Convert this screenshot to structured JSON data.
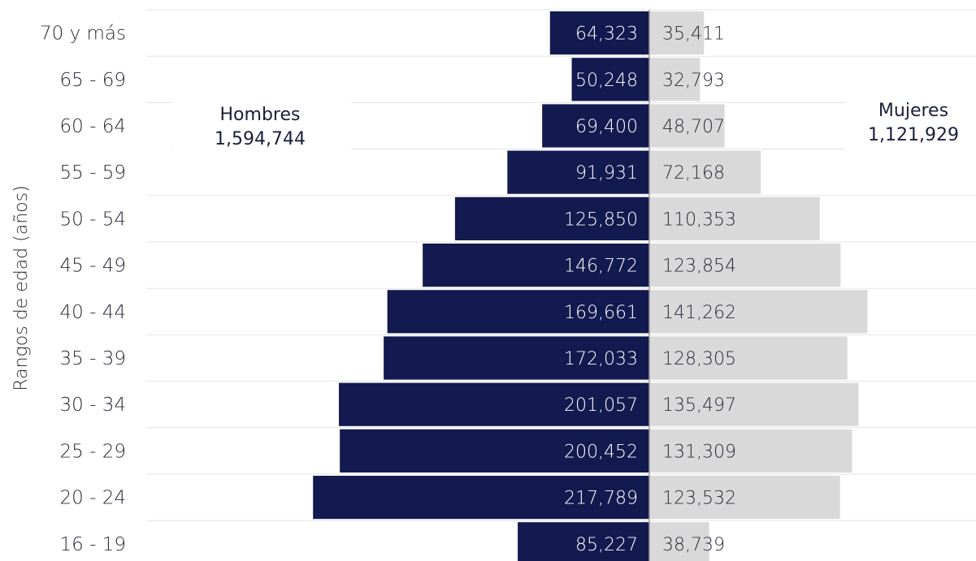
{
  "chart_data": {
    "type": "bar",
    "orientation": "horizontal-population-pyramid",
    "ylabel": "Rangos de edad (años)",
    "categories": [
      "70 y más",
      "65 - 69",
      "60 - 64",
      "55 - 59",
      "50 - 54",
      "45 - 49",
      "40 - 44",
      "35 - 39",
      "30 - 34",
      "25 - 29",
      "20 - 24",
      "16 - 19"
    ],
    "series": [
      {
        "name": "Hombres",
        "color": "#131a4f",
        "total_label": "1,594,744",
        "values": [
          64323,
          50248,
          69400,
          91931,
          125850,
          146772,
          169661,
          172033,
          201057,
          200452,
          217789,
          85227
        ],
        "labels": [
          "64,323",
          "50,248",
          "69,400",
          "91,931",
          "125,850",
          "146,772",
          "169,661",
          "172,033",
          "201,057",
          "200,452",
          "217,789",
          "85,227"
        ]
      },
      {
        "name": "Mujeres",
        "color": "#d9d9d9",
        "total_label": "1,121,929",
        "values": [
          35411,
          32793,
          48707,
          72168,
          110353,
          123854,
          141262,
          128305,
          135497,
          131309,
          123532,
          38739
        ],
        "labels": [
          "35,411",
          "32,793",
          "48,707",
          "72,168",
          "110,353",
          "123,854",
          "141,262",
          "128,305",
          "135,497",
          "131,309",
          "123,532",
          "38,739"
        ]
      }
    ],
    "grid": true,
    "legend": "inline-labels"
  }
}
